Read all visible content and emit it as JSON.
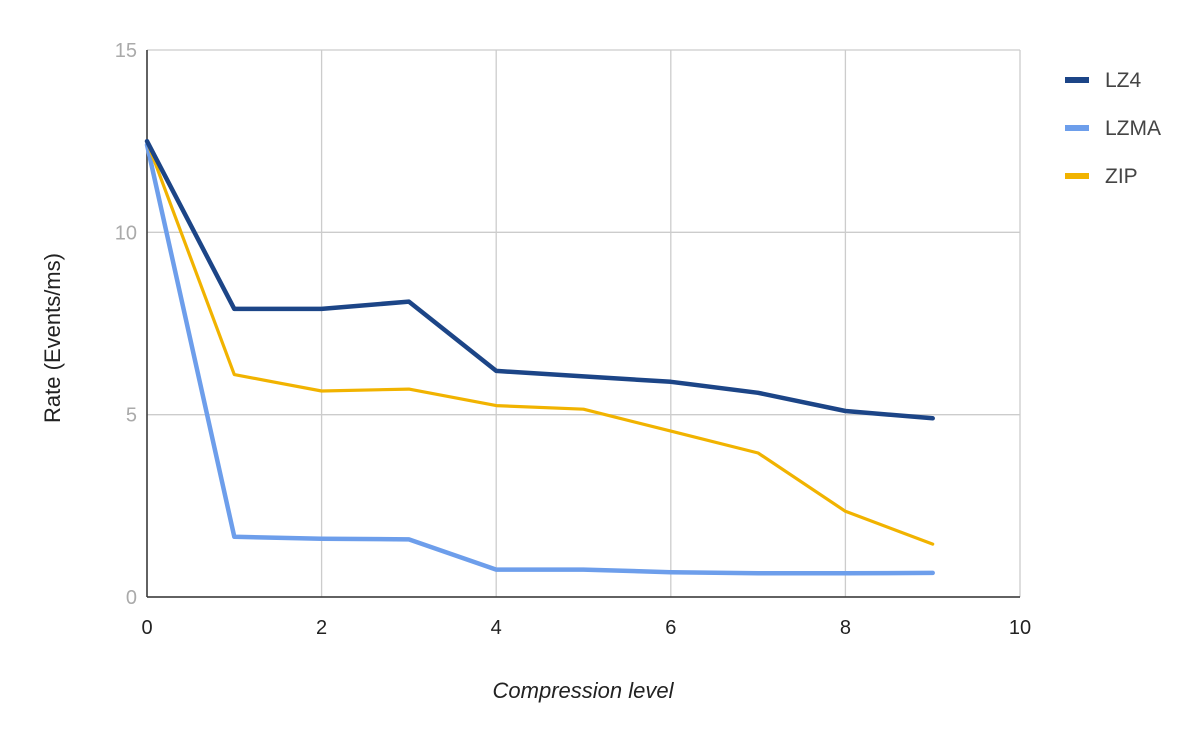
{
  "chart_data": {
    "type": "line",
    "xlabel": "Compression level",
    "ylabel": "Rate (Events/ms)",
    "xlim": [
      0,
      10
    ],
    "ylim": [
      0,
      15
    ],
    "xticks": [
      "0",
      "2",
      "4",
      "6",
      "8",
      "10"
    ],
    "yticks": [
      "0",
      "5",
      "10",
      "15"
    ],
    "grid": true,
    "legend_position": "right",
    "series": [
      {
        "name": "LZ4",
        "color": "#1c4587",
        "x": [
          0,
          1,
          2,
          3,
          4,
          5,
          6,
          7,
          8,
          9
        ],
        "y": [
          12.5,
          7.9,
          7.9,
          8.1,
          6.2,
          6.05,
          5.9,
          5.6,
          5.1,
          4.9
        ]
      },
      {
        "name": "LZMA",
        "color": "#6d9eeb",
        "x": [
          0,
          1,
          2,
          3,
          4,
          5,
          6,
          7,
          8,
          9
        ],
        "y": [
          12.4,
          1.65,
          1.6,
          1.58,
          0.75,
          0.75,
          0.68,
          0.65,
          0.65,
          0.66
        ]
      },
      {
        "name": "ZIP",
        "color": "#f1b300",
        "x": [
          0,
          1,
          2,
          3,
          4,
          5,
          6,
          7,
          8,
          9
        ],
        "y": [
          12.5,
          6.1,
          5.65,
          5.7,
          5.25,
          5.15,
          4.55,
          3.95,
          2.35,
          1.45
        ]
      }
    ]
  }
}
